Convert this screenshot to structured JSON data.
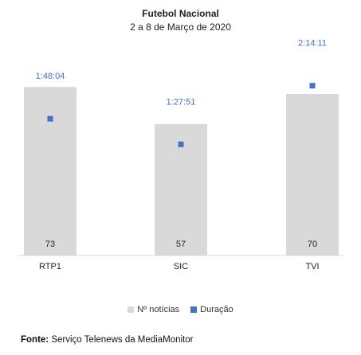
{
  "chart_data": {
    "type": "bar",
    "title": "Futebol Nacional",
    "subtitle": "2 a 8 de Março de 2020",
    "categories": [
      "RTP1",
      "SIC",
      "TVI"
    ],
    "series": [
      {
        "name": "Nº notícias",
        "type": "bar",
        "values": [
          73,
          57,
          70
        ],
        "value_labels": [
          "73",
          "57",
          "70"
        ],
        "color": "#d9d9d9"
      },
      {
        "name": "Duração",
        "type": "marker",
        "values_seconds": [
          6484,
          5271,
          8051
        ],
        "value_labels": [
          "1:48:04",
          "1:27:51",
          "2:14:11"
        ],
        "color": "#4472c4"
      }
    ],
    "value_label_color": "#4472c4",
    "legend_position": "bottom",
    "grid": false
  },
  "legend": {
    "items": [
      {
        "label": "Nº notícias",
        "color": "#d9d9d9"
      },
      {
        "label": "Duração",
        "color": "#4472c4"
      }
    ]
  },
  "source": {
    "label": "Fonte:",
    "text": "Serviço Telenews da MediaMonitor"
  }
}
